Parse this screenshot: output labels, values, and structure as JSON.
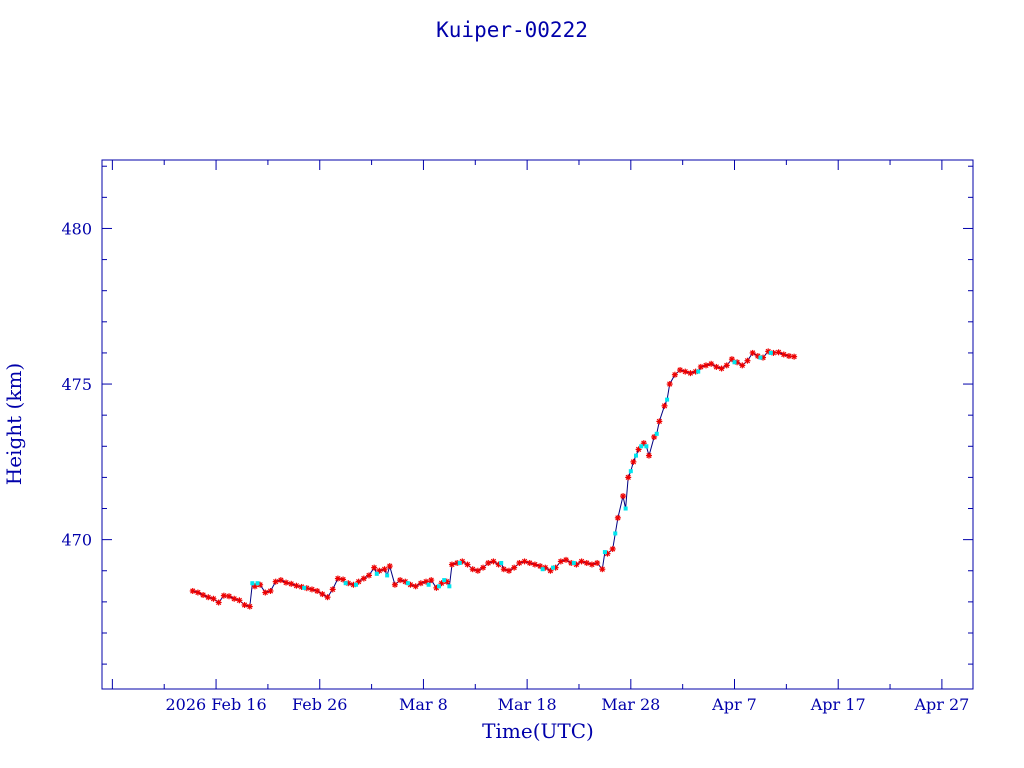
{
  "chart_data": {
    "type": "line",
    "title": "Kuiper-00222",
    "xlabel": "Time(UTC)",
    "ylabel": "Height (km)",
    "x_type": "date",
    "xlim": [
      "2026-02-05",
      "2026-04-30"
    ],
    "ylim": [
      465.2,
      482.2
    ],
    "x_ticks": [
      {
        "date": "2026-02-16",
        "label": "2026 Feb 16"
      },
      {
        "date": "2026-02-26",
        "label": "Feb 26"
      },
      {
        "date": "2026-03-08",
        "label": "Mar  8"
      },
      {
        "date": "2026-03-18",
        "label": "Mar 18"
      },
      {
        "date": "2026-03-28",
        "label": "Mar 28"
      },
      {
        "date": "2026-04-07",
        "label": "Apr  7"
      },
      {
        "date": "2026-04-17",
        "label": "Apr 17"
      },
      {
        "date": "2026-04-27",
        "label": "Apr 27"
      }
    ],
    "y_ticks": [
      470,
      475,
      480
    ],
    "grid": false,
    "colors": {
      "axes": "#0000aa",
      "line": "#000080",
      "marker_primary": "#ee0000",
      "marker_secondary": "#00e5ee"
    },
    "series": [
      {
        "marker": "star",
        "points": [
          [
            "2026-02-13T18:00",
            468.35
          ],
          [
            "2026-02-14T06:00",
            468.3
          ],
          [
            "2026-02-14T18:00",
            468.22
          ],
          [
            "2026-02-15T06:00",
            468.15
          ],
          [
            "2026-02-15T18:00",
            468.1
          ],
          [
            "2026-02-16T06:00",
            467.98
          ],
          [
            "2026-02-16T18:00",
            468.2
          ],
          [
            "2026-02-17T06:00",
            468.18
          ],
          [
            "2026-02-17T18:00",
            468.1
          ],
          [
            "2026-02-18T06:00",
            468.05
          ],
          [
            "2026-02-18T18:00",
            467.9
          ],
          [
            "2026-02-19T06:00",
            467.85
          ],
          [
            "2026-02-19T18:00",
            468.5
          ],
          [
            "2026-02-20T06:00",
            468.55
          ],
          [
            "2026-02-20T18:00",
            468.3
          ],
          [
            "2026-02-21T06:00",
            468.35
          ],
          [
            "2026-02-21T18:00",
            468.65
          ],
          [
            "2026-02-22T06:00",
            468.7
          ],
          [
            "2026-02-22T18:00",
            468.62
          ],
          [
            "2026-02-23T06:00",
            468.58
          ],
          [
            "2026-02-23T18:00",
            468.52
          ],
          [
            "2026-02-24T06:00",
            468.48
          ],
          [
            "2026-02-24T18:00",
            468.44
          ],
          [
            "2026-02-25T06:00",
            468.4
          ],
          [
            "2026-02-25T18:00",
            468.35
          ],
          [
            "2026-02-26T06:00",
            468.25
          ],
          [
            "2026-02-26T18:00",
            468.15
          ],
          [
            "2026-02-27T06:00",
            468.4
          ],
          [
            "2026-02-27T18:00",
            468.75
          ],
          [
            "2026-02-28T06:00",
            468.72
          ],
          [
            "2026-02-28T18:00",
            468.6
          ],
          [
            "2026-03-01T06:00",
            468.55
          ],
          [
            "2026-03-01T18:00",
            468.65
          ],
          [
            "2026-03-02T06:00",
            468.75
          ],
          [
            "2026-03-02T18:00",
            468.85
          ],
          [
            "2026-03-03T06:00",
            469.1
          ],
          [
            "2026-03-03T18:00",
            469.0
          ],
          [
            "2026-03-04T06:00",
            469.05
          ],
          [
            "2026-03-04T18:00",
            469.15
          ],
          [
            "2026-03-05T06:00",
            468.55
          ],
          [
            "2026-03-05T18:00",
            468.7
          ],
          [
            "2026-03-06T06:00",
            468.65
          ],
          [
            "2026-03-06T18:00",
            468.55
          ],
          [
            "2026-03-07T06:00",
            468.5
          ],
          [
            "2026-03-07T18:00",
            468.6
          ],
          [
            "2026-03-08T06:00",
            468.65
          ],
          [
            "2026-03-08T18:00",
            468.7
          ],
          [
            "2026-03-09T06:00",
            468.45
          ],
          [
            "2026-03-09T18:00",
            468.6
          ],
          [
            "2026-03-10T06:00",
            468.65
          ],
          [
            "2026-03-10T18:00",
            469.2
          ],
          [
            "2026-03-11T06:00",
            469.25
          ],
          [
            "2026-03-11T18:00",
            469.3
          ],
          [
            "2026-03-12T06:00",
            469.2
          ],
          [
            "2026-03-12T18:00",
            469.05
          ],
          [
            "2026-03-13T06:00",
            469.0
          ],
          [
            "2026-03-13T18:00",
            469.1
          ],
          [
            "2026-03-14T06:00",
            469.25
          ],
          [
            "2026-03-14T18:00",
            469.3
          ],
          [
            "2026-03-15T06:00",
            469.2
          ],
          [
            "2026-03-15T18:00",
            469.05
          ],
          [
            "2026-03-16T06:00",
            469.0
          ],
          [
            "2026-03-16T18:00",
            469.1
          ],
          [
            "2026-03-17T06:00",
            469.25
          ],
          [
            "2026-03-17T18:00",
            469.3
          ],
          [
            "2026-03-18T06:00",
            469.25
          ],
          [
            "2026-03-18T18:00",
            469.2
          ],
          [
            "2026-03-19T06:00",
            469.15
          ],
          [
            "2026-03-19T18:00",
            469.1
          ],
          [
            "2026-03-20T06:00",
            469.0
          ],
          [
            "2026-03-20T18:00",
            469.1
          ],
          [
            "2026-03-21T06:00",
            469.3
          ],
          [
            "2026-03-21T18:00",
            469.35
          ],
          [
            "2026-03-22T06:00",
            469.25
          ],
          [
            "2026-03-22T18:00",
            469.2
          ],
          [
            "2026-03-23T06:00",
            469.3
          ],
          [
            "2026-03-23T18:00",
            469.25
          ],
          [
            "2026-03-24T06:00",
            469.2
          ],
          [
            "2026-03-24T18:00",
            469.25
          ],
          [
            "2026-03-25T06:00",
            469.05
          ],
          [
            "2026-03-25T18:00",
            469.55
          ],
          [
            "2026-03-26T06:00",
            469.7
          ],
          [
            "2026-03-26T18:00",
            470.7
          ],
          [
            "2026-03-27T06:00",
            471.4
          ],
          [
            "2026-03-27T18:00",
            472.0
          ],
          [
            "2026-03-28T06:00",
            472.5
          ],
          [
            "2026-03-28T18:00",
            472.9
          ],
          [
            "2026-03-29T06:00",
            473.1
          ],
          [
            "2026-03-29T18:00",
            472.7
          ],
          [
            "2026-03-30T06:00",
            473.3
          ],
          [
            "2026-03-30T18:00",
            473.8
          ],
          [
            "2026-03-31T06:00",
            474.3
          ],
          [
            "2026-03-31T18:00",
            475.0
          ],
          [
            "2026-04-01T06:00",
            475.3
          ],
          [
            "2026-04-01T18:00",
            475.45
          ],
          [
            "2026-04-02T06:00",
            475.4
          ],
          [
            "2026-04-02T18:00",
            475.35
          ],
          [
            "2026-04-03T06:00",
            475.4
          ],
          [
            "2026-04-03T18:00",
            475.55
          ],
          [
            "2026-04-04T06:00",
            475.6
          ],
          [
            "2026-04-04T18:00",
            475.65
          ],
          [
            "2026-04-05T06:00",
            475.55
          ],
          [
            "2026-04-05T18:00",
            475.5
          ],
          [
            "2026-04-06T06:00",
            475.6
          ],
          [
            "2026-04-06T18:00",
            475.8
          ],
          [
            "2026-04-07T06:00",
            475.7
          ],
          [
            "2026-04-07T18:00",
            475.6
          ],
          [
            "2026-04-08T06:00",
            475.75
          ],
          [
            "2026-04-08T18:00",
            476.0
          ],
          [
            "2026-04-09T06:00",
            475.9
          ],
          [
            "2026-04-09T18:00",
            475.85
          ],
          [
            "2026-04-10T06:00",
            476.05
          ],
          [
            "2026-04-10T18:00",
            476.0
          ],
          [
            "2026-04-11T06:00",
            476.02
          ],
          [
            "2026-04-11T18:00",
            475.95
          ],
          [
            "2026-04-12T06:00",
            475.9
          ],
          [
            "2026-04-12T18:00",
            475.88
          ]
        ]
      },
      {
        "marker": "dot",
        "points": [
          [
            "2026-02-19T12:00",
            468.6
          ],
          [
            "2026-02-20T00:00",
            468.6
          ],
          [
            "2026-02-24T12:00",
            468.45
          ],
          [
            "2026-02-28T12:00",
            468.6
          ],
          [
            "2026-03-01T12:00",
            468.55
          ],
          [
            "2026-03-03T12:00",
            468.9
          ],
          [
            "2026-03-04T12:00",
            468.85
          ],
          [
            "2026-03-06T12:00",
            468.6
          ],
          [
            "2026-03-08T12:00",
            468.55
          ],
          [
            "2026-03-09T12:00",
            468.5
          ],
          [
            "2026-03-10T00:00",
            468.7
          ],
          [
            "2026-03-10T12:00",
            468.5
          ],
          [
            "2026-03-11T12:00",
            469.25
          ],
          [
            "2026-03-15T12:00",
            469.25
          ],
          [
            "2026-03-19T12:00",
            469.05
          ],
          [
            "2026-03-20T12:00",
            469.1
          ],
          [
            "2026-03-22T12:00",
            469.25
          ],
          [
            "2026-03-25T12:00",
            469.6
          ],
          [
            "2026-03-26T12:00",
            470.2
          ],
          [
            "2026-03-27T12:00",
            471.0
          ],
          [
            "2026-03-28T00:00",
            472.2
          ],
          [
            "2026-03-28T12:00",
            472.7
          ],
          [
            "2026-03-29T00:00",
            473.0
          ],
          [
            "2026-03-29T12:00",
            473.0
          ],
          [
            "2026-03-30T12:00",
            473.4
          ],
          [
            "2026-03-31T12:00",
            474.5
          ],
          [
            "2026-04-03T12:00",
            475.4
          ],
          [
            "2026-04-07T00:00",
            475.7
          ],
          [
            "2026-04-09T12:00",
            475.85
          ],
          [
            "2026-04-10T12:00",
            476.0
          ]
        ]
      }
    ]
  }
}
